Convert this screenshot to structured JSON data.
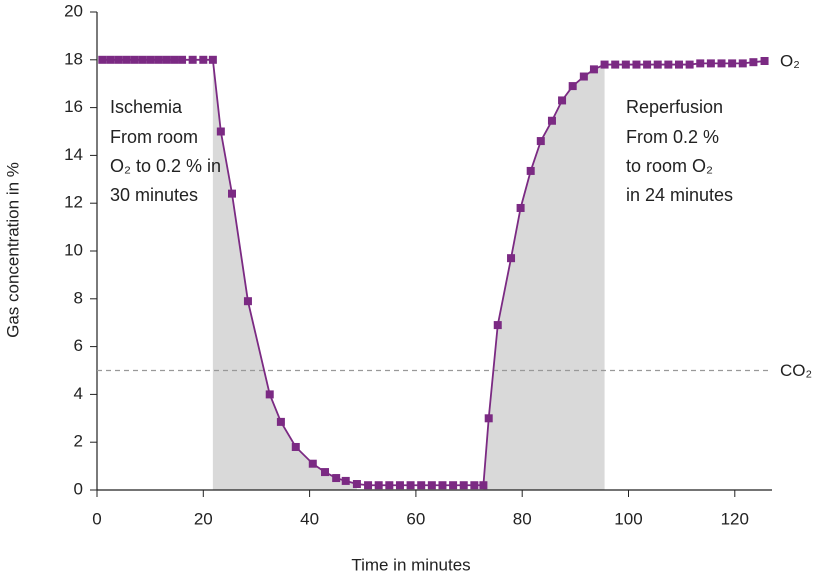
{
  "chart_data": {
    "type": "line",
    "xlabel": "Time in minutes",
    "ylabel": "Gas concentration in %",
    "x": [
      1,
      2.5,
      4,
      5.5,
      7,
      8.5,
      10,
      11.5,
      13,
      14.5,
      16,
      18,
      20,
      21.8,
      23.3,
      25.4,
      28.4,
      32.5,
      34.6,
      37.4,
      40.6,
      42.9,
      45,
      46.8,
      48.9,
      51,
      53,
      55,
      57,
      59,
      61,
      63,
      65,
      67,
      69,
      71,
      72.7,
      73.7,
      75.4,
      77.9,
      79.7,
      81.6,
      83.5,
      85.6,
      87.5,
      89.5,
      91.6,
      93.5,
      95.5,
      97.5,
      99.5,
      101.5,
      103.5,
      105.5,
      107.5,
      109.5,
      111.5,
      113.5,
      115.5,
      117.5,
      119.5,
      121.5,
      123.5,
      125.6
    ],
    "series": [
      {
        "name": "O₂",
        "color": "#7b2a83",
        "values": [
          18,
          18,
          18,
          18,
          18,
          18,
          18,
          18,
          18,
          18,
          18,
          18,
          18,
          18,
          15.0,
          12.4,
          7.9,
          4.0,
          2.85,
          1.8,
          1.1,
          0.75,
          0.5,
          0.38,
          0.25,
          0.2,
          0.2,
          0.2,
          0.2,
          0.2,
          0.2,
          0.2,
          0.2,
          0.2,
          0.2,
          0.2,
          0.2,
          3.0,
          6.9,
          9.7,
          11.8,
          13.35,
          14.6,
          15.45,
          16.3,
          16.9,
          17.3,
          17.6,
          17.8,
          17.8,
          17.8,
          17.8,
          17.8,
          17.8,
          17.8,
          17.8,
          17.8,
          17.85,
          17.85,
          17.85,
          17.85,
          17.85,
          17.9,
          17.95
        ]
      }
    ],
    "reference_lines": [
      {
        "value": 5,
        "label": "CO₂",
        "color": "#999999"
      }
    ],
    "shade_color": "#d9d9d9",
    "annotations": [
      {
        "title": "Ischemia",
        "lines": [
          "From room",
          "O₂ to 0.2 % in",
          "30 minutes"
        ]
      },
      {
        "title": "Reperfusion",
        "lines": [
          "From 0.2 %",
          "to room O₂",
          "in 24 minutes"
        ]
      }
    ],
    "xlim": [
      0,
      127
    ],
    "ylim": [
      0,
      20
    ],
    "xticks": [
      0,
      20,
      40,
      60,
      80,
      100,
      120
    ],
    "yticks": [
      0,
      2,
      4,
      6,
      8,
      10,
      12,
      14,
      16,
      18,
      20
    ],
    "grid": false
  }
}
